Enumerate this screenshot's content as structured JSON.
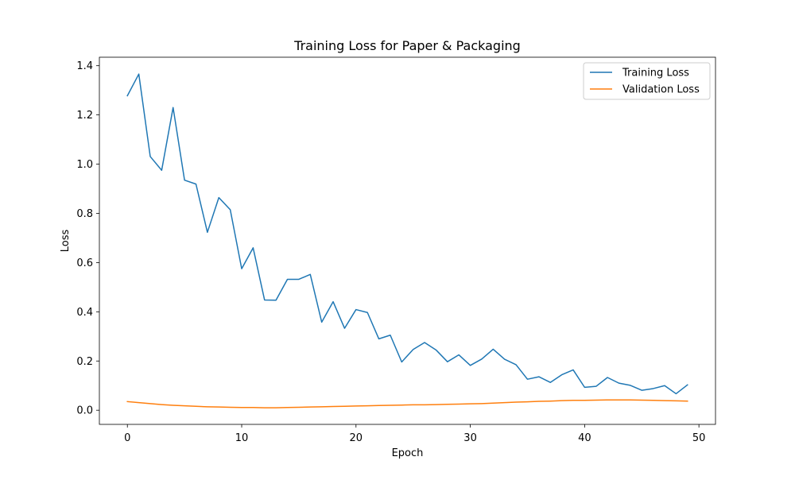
{
  "chart_data": {
    "type": "line",
    "title": "Training Loss for Paper & Packaging",
    "xlabel": "Epoch",
    "ylabel": "Loss",
    "xlim": [
      -2.45,
      51.45
    ],
    "ylim": [
      -0.0575,
      1.4345
    ],
    "xticks": [
      0,
      10,
      20,
      30,
      40,
      50
    ],
    "xtick_labels": [
      "0",
      "10",
      "20",
      "30",
      "40",
      "50"
    ],
    "yticks": [
      0.0,
      0.2,
      0.4,
      0.6,
      0.8,
      1.0,
      1.2,
      1.4
    ],
    "ytick_labels": [
      "0.0",
      "0.2",
      "0.4",
      "0.6",
      "0.8",
      "1.0",
      "1.2",
      "1.4"
    ],
    "grid": false,
    "legend_position": "top-right",
    "x": [
      0,
      1,
      2,
      3,
      4,
      5,
      6,
      7,
      8,
      9,
      10,
      11,
      12,
      13,
      14,
      15,
      16,
      17,
      18,
      19,
      20,
      21,
      22,
      23,
      24,
      25,
      26,
      27,
      28,
      29,
      30,
      31,
      32,
      33,
      34,
      35,
      36,
      37,
      38,
      39,
      40,
      41,
      42,
      43,
      44,
      45,
      46,
      47,
      48,
      49
    ],
    "series": [
      {
        "name": "Training Loss",
        "color": "#1f77b4",
        "values": [
          1.278,
          1.366,
          1.031,
          0.975,
          1.23,
          0.935,
          0.919,
          0.723,
          0.864,
          0.815,
          0.575,
          0.66,
          0.448,
          0.447,
          0.532,
          0.532,
          0.552,
          0.358,
          0.441,
          0.333,
          0.409,
          0.397,
          0.29,
          0.305,
          0.196,
          0.247,
          0.275,
          0.245,
          0.197,
          0.225,
          0.182,
          0.208,
          0.248,
          0.207,
          0.185,
          0.126,
          0.136,
          0.113,
          0.144,
          0.164,
          0.093,
          0.097,
          0.133,
          0.11,
          0.101,
          0.081,
          0.088,
          0.1,
          0.067,
          0.103
        ]
      },
      {
        "name": "Validation Loss",
        "color": "#ff7f0e",
        "values": [
          0.035,
          0.031,
          0.027,
          0.023,
          0.02,
          0.018,
          0.016,
          0.014,
          0.013,
          0.012,
          0.011,
          0.011,
          0.01,
          0.01,
          0.011,
          0.012,
          0.013,
          0.014,
          0.015,
          0.016,
          0.017,
          0.018,
          0.019,
          0.02,
          0.021,
          0.022,
          0.022,
          0.023,
          0.024,
          0.025,
          0.026,
          0.027,
          0.029,
          0.031,
          0.033,
          0.034,
          0.036,
          0.037,
          0.039,
          0.04,
          0.04,
          0.041,
          0.042,
          0.042,
          0.042,
          0.041,
          0.04,
          0.039,
          0.038,
          0.037
        ]
      }
    ]
  }
}
